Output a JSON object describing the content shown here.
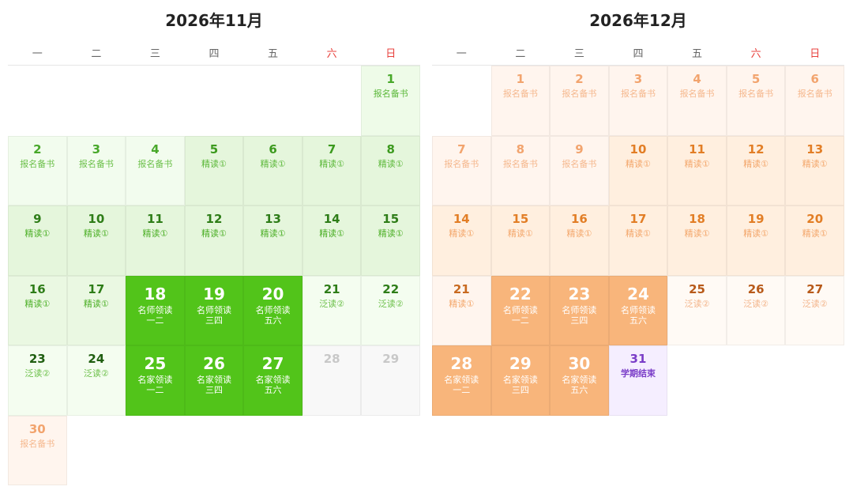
{
  "months": [
    {
      "title": "2026年11月",
      "weekdays": [
        "一",
        "二",
        "三",
        "四",
        "五",
        "六",
        "日"
      ],
      "days": [
        {
          "day": 1,
          "labels": [
            "报名备书"
          ],
          "fill": "#eefbe8",
          "color": "#48a82a",
          "label_color": "#5cb83a"
        },
        {
          "day": 2,
          "labels": [
            "报名备书"
          ],
          "fill": "#f2fcee",
          "color": "#48a82a",
          "label_color": "#6cc04a"
        },
        {
          "day": 3,
          "labels": [
            "报名备书"
          ],
          "fill": "#f2fcee",
          "color": "#48a82a",
          "label_color": "#6cc04a"
        },
        {
          "day": 4,
          "labels": [
            "报名备书"
          ],
          "fill": "#f2fcee",
          "color": "#48a82a",
          "label_color": "#6cc04a"
        },
        {
          "day": 5,
          "labels": [
            "精读①"
          ],
          "fill": "#e5f6dc",
          "color": "#3c9a1e",
          "label_color": "#5cb83a"
        },
        {
          "day": 6,
          "labels": [
            "精读①"
          ],
          "fill": "#e5f6dc",
          "color": "#3c9a1e",
          "label_color": "#5cb83a"
        },
        {
          "day": 7,
          "labels": [
            "精读①"
          ],
          "fill": "#e5f6dc",
          "color": "#3c9a1e",
          "label_color": "#5cb83a"
        },
        {
          "day": 8,
          "labels": [
            "精读①"
          ],
          "fill": "#e5f6dc",
          "color": "#3c9a1e",
          "label_color": "#5cb83a"
        },
        {
          "day": 9,
          "labels": [
            "精读①"
          ],
          "fill": "#e5f6dc",
          "color": "#2e7d18",
          "label_color": "#4caf26"
        },
        {
          "day": 10,
          "labels": [
            "精读①"
          ],
          "fill": "#e5f6dc",
          "color": "#2e7d18",
          "label_color": "#4caf26"
        },
        {
          "day": 11,
          "labels": [
            "精读①"
          ],
          "fill": "#e5f6dc",
          "color": "#2e7d18",
          "label_color": "#4caf26"
        },
        {
          "day": 12,
          "labels": [
            "精读①"
          ],
          "fill": "#e5f6dc",
          "color": "#2e7d18",
          "label_color": "#4caf26"
        },
        {
          "day": 13,
          "labels": [
            "精读①"
          ],
          "fill": "#e5f6dc",
          "color": "#2e7d18",
          "label_color": "#4caf26"
        },
        {
          "day": 14,
          "labels": [
            "精读①"
          ],
          "fill": "#e5f6dc",
          "color": "#2e7d18",
          "label_color": "#4caf26"
        },
        {
          "day": 15,
          "labels": [
            "精读①"
          ],
          "fill": "#e5f6dc",
          "color": "#2e7d18",
          "label_color": "#4caf26"
        },
        {
          "day": 16,
          "labels": [
            "精读①"
          ],
          "fill": "#eaf8e2",
          "color": "#2e7d18",
          "label_color": "#4caf26"
        },
        {
          "day": 17,
          "labels": [
            "精读①"
          ],
          "fill": "#eaf8e2",
          "color": "#2e7d18",
          "label_color": "#4caf26"
        },
        {
          "day": 18,
          "labels": [
            "名师领读",
            "一二"
          ],
          "fill": "#52c41a",
          "color": "#ffffff",
          "label_color": "#ffffff"
        },
        {
          "day": 19,
          "labels": [
            "名师领读",
            "三四"
          ],
          "fill": "#52c41a",
          "color": "#ffffff",
          "label_color": "#ffffff"
        },
        {
          "day": 20,
          "labels": [
            "名师领读",
            "五六"
          ],
          "fill": "#52c41a",
          "color": "#ffffff",
          "label_color": "#ffffff"
        },
        {
          "day": 21,
          "labels": [
            "泛读②"
          ],
          "fill": "#f4fdf0",
          "color": "#2e7d18",
          "label_color": "#6cc04a"
        },
        {
          "day": 22,
          "labels": [
            "泛读②"
          ],
          "fill": "#f4fdf0",
          "color": "#2e7d18",
          "label_color": "#6cc04a"
        },
        {
          "day": 23,
          "labels": [
            "泛读②"
          ],
          "fill": "#f4fdf0",
          "color": "#1f5e10",
          "label_color": "#6cc04a"
        },
        {
          "day": 24,
          "labels": [
            "泛读②"
          ],
          "fill": "#f4fdf0",
          "color": "#1f5e10",
          "label_color": "#6cc04a"
        },
        {
          "day": 25,
          "labels": [
            "名家领读",
            "一二"
          ],
          "fill": "#52c41a",
          "color": "#ffffff",
          "label_color": "#ffffff"
        },
        {
          "day": 26,
          "labels": [
            "名家领读",
            "三四"
          ],
          "fill": "#52c41a",
          "color": "#ffffff",
          "label_color": "#ffffff"
        },
        {
          "day": 27,
          "labels": [
            "名家领读",
            "五六"
          ],
          "fill": "#52c41a",
          "color": "#ffffff",
          "label_color": "#ffffff"
        },
        {
          "day": 28,
          "labels": [],
          "fill": "#f8f8f8",
          "color": "#c8c8c8",
          "label_color": "#c8c8c8"
        },
        {
          "day": 29,
          "labels": [],
          "fill": "#f8f8f8",
          "color": "#c8c8c8",
          "label_color": "#c8c8c8"
        },
        {
          "day": 30,
          "labels": [
            "报名备书"
          ],
          "fill": "#fff5ee",
          "color": "#f2a46e",
          "label_color": "#f5b88e"
        }
      ]
    },
    {
      "title": "2026年12月",
      "weekdays": [
        "一",
        "二",
        "三",
        "四",
        "五",
        "六",
        "日"
      ],
      "days": [
        {
          "day": 1,
          "labels": [
            "报名备书"
          ],
          "fill": "#fff5ee",
          "color": "#f2a46e",
          "label_color": "#f5b88e"
        },
        {
          "day": 2,
          "labels": [
            "报名备书"
          ],
          "fill": "#fff5ee",
          "color": "#f2a46e",
          "label_color": "#f5b88e"
        },
        {
          "day": 3,
          "labels": [
            "报名备书"
          ],
          "fill": "#fff5ee",
          "color": "#f2a46e",
          "label_color": "#f5b88e"
        },
        {
          "day": 4,
          "labels": [
            "报名备书"
          ],
          "fill": "#fff5ee",
          "color": "#f2a46e",
          "label_color": "#f5b88e"
        },
        {
          "day": 5,
          "labels": [
            "报名备书"
          ],
          "fill": "#fff5ee",
          "color": "#f2a46e",
          "label_color": "#f5b88e"
        },
        {
          "day": 6,
          "labels": [
            "报名备书"
          ],
          "fill": "#fff5ee",
          "color": "#f2a46e",
          "label_color": "#f5b88e"
        },
        {
          "day": 7,
          "labels": [
            "报名备书"
          ],
          "fill": "#fff5ee",
          "color": "#f2a46e",
          "label_color": "#f5b88e"
        },
        {
          "day": 8,
          "labels": [
            "报名备书"
          ],
          "fill": "#fff5ee",
          "color": "#f2a46e",
          "label_color": "#f5b88e"
        },
        {
          "day": 9,
          "labels": [
            "报名备书"
          ],
          "fill": "#fff5ee",
          "color": "#f2a46e",
          "label_color": "#f5b88e"
        },
        {
          "day": 10,
          "labels": [
            "精读①"
          ],
          "fill": "#ffefdf",
          "color": "#e27e26",
          "label_color": "#f3a66a"
        },
        {
          "day": 11,
          "labels": [
            "精读①"
          ],
          "fill": "#ffefdf",
          "color": "#e27e26",
          "label_color": "#f3a66a"
        },
        {
          "day": 12,
          "labels": [
            "精读①"
          ],
          "fill": "#ffefdf",
          "color": "#e27e26",
          "label_color": "#f3a66a"
        },
        {
          "day": 13,
          "labels": [
            "精读①"
          ],
          "fill": "#ffefdf",
          "color": "#e27e26",
          "label_color": "#f3a66a"
        },
        {
          "day": 14,
          "labels": [
            "精读①"
          ],
          "fill": "#ffefdf",
          "color": "#e27e26",
          "label_color": "#f3a66a"
        },
        {
          "day": 15,
          "labels": [
            "精读①"
          ],
          "fill": "#ffefdf",
          "color": "#e27e26",
          "label_color": "#f3a66a"
        },
        {
          "day": 16,
          "labels": [
            "精读①"
          ],
          "fill": "#ffefdf",
          "color": "#e27e26",
          "label_color": "#f3a66a"
        },
        {
          "day": 17,
          "labels": [
            "精读①"
          ],
          "fill": "#ffefdf",
          "color": "#e27e26",
          "label_color": "#f3a66a"
        },
        {
          "day": 18,
          "labels": [
            "精读①"
          ],
          "fill": "#ffefdf",
          "color": "#e27e26",
          "label_color": "#f3a66a"
        },
        {
          "day": 19,
          "labels": [
            "精读①"
          ],
          "fill": "#ffefdf",
          "color": "#e27e26",
          "label_color": "#f3a66a"
        },
        {
          "day": 20,
          "labels": [
            "精读①"
          ],
          "fill": "#ffefdf",
          "color": "#e27e26",
          "label_color": "#f3a66a"
        },
        {
          "day": 21,
          "labels": [
            "精读①"
          ],
          "fill": "#fff5ee",
          "color": "#c86a20",
          "label_color": "#f3a66a"
        },
        {
          "day": 22,
          "labels": [
            "名师领读",
            "一二"
          ],
          "fill": "#f8b57b",
          "color": "#ffffff",
          "label_color": "#ffffff"
        },
        {
          "day": 23,
          "labels": [
            "名师领读",
            "三四"
          ],
          "fill": "#f8b57b",
          "color": "#ffffff",
          "label_color": "#ffffff"
        },
        {
          "day": 24,
          "labels": [
            "名师领读",
            "五六"
          ],
          "fill": "#f8b57b",
          "color": "#ffffff",
          "label_color": "#ffffff"
        },
        {
          "day": 25,
          "labels": [
            "泛读②"
          ],
          "fill": "#fffaf5",
          "color": "#b85a1a",
          "label_color": "#f3b48a"
        },
        {
          "day": 26,
          "labels": [
            "泛读②"
          ],
          "fill": "#fffaf5",
          "color": "#b85a1a",
          "label_color": "#f3b48a"
        },
        {
          "day": 27,
          "labels": [
            "泛读②"
          ],
          "fill": "#fffaf5",
          "color": "#b85a1a",
          "label_color": "#f3b48a"
        },
        {
          "day": 28,
          "labels": [
            "名家领读",
            "一二"
          ],
          "fill": "#f8b57b",
          "color": "#ffffff",
          "label_color": "#ffffff"
        },
        {
          "day": 29,
          "labels": [
            "名家领读",
            "三四"
          ],
          "fill": "#f8b57b",
          "color": "#ffffff",
          "label_color": "#ffffff"
        },
        {
          "day": 30,
          "labels": [
            "名家领读",
            "五六"
          ],
          "fill": "#f8b57b",
          "color": "#ffffff",
          "label_color": "#ffffff"
        },
        {
          "day": 31,
          "labels": [
            "学期结束"
          ],
          "fill": "#f5eeff",
          "color": "#7a3dc8",
          "label_color": "#7a3dc8"
        }
      ]
    }
  ]
}
